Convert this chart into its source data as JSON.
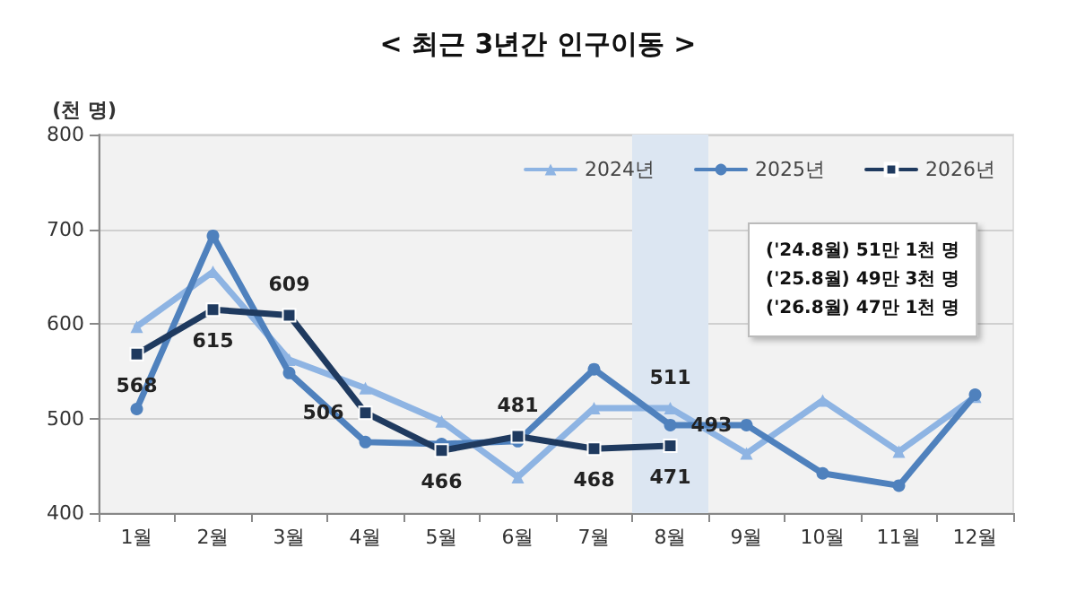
{
  "chart_data": {
    "type": "line",
    "title": "< 최근 3년간 인구이동 >",
    "ylabel": "(천 명)",
    "categories": [
      "1월",
      "2월",
      "3월",
      "4월",
      "5월",
      "6월",
      "7월",
      "8월",
      "9월",
      "10월",
      "11월",
      "12월"
    ],
    "series": [
      {
        "name": "2024년",
        "color": "#8eb4e3",
        "marker": "triangle",
        "values": [
          597,
          655,
          562,
          532,
          497,
          438,
          511,
          511,
          463,
          519,
          465,
          523
        ],
        "value_labels": [
          null,
          null,
          null,
          null,
          null,
          null,
          null,
          "511",
          null,
          null,
          null,
          null
        ]
      },
      {
        "name": "2025년",
        "color": "#4f81bd",
        "marker": "circle",
        "values": [
          510,
          693,
          548,
          475,
          473,
          476,
          552,
          493,
          493,
          442,
          429,
          525
        ],
        "value_labels": [
          null,
          null,
          null,
          null,
          null,
          null,
          null,
          "493",
          null,
          null,
          null,
          null
        ]
      },
      {
        "name": "2026년",
        "color": "#1f3a5f",
        "marker": "square",
        "values": [
          568,
          615,
          609,
          506,
          466,
          481,
          468,
          471,
          null,
          null,
          null,
          null
        ],
        "value_labels": [
          "568",
          "615",
          "609",
          "506",
          "466",
          "481",
          "468",
          "471",
          null,
          null,
          null,
          null
        ]
      }
    ],
    "ylim": [
      400,
      800
    ],
    "yticks": [
      400,
      500,
      600,
      700,
      800
    ],
    "grid": "y",
    "legend": "top right",
    "line_style": "solid",
    "bands": [
      {
        "axis": "x",
        "from": "8월",
        "to": "8월",
        "color": "#dce6f2"
      }
    ],
    "annotations": [
      "('24.8월) 51만 1천 명",
      "('25.8월) 49만 3천 명",
      "('26.8월) 47만 1천 명"
    ]
  }
}
